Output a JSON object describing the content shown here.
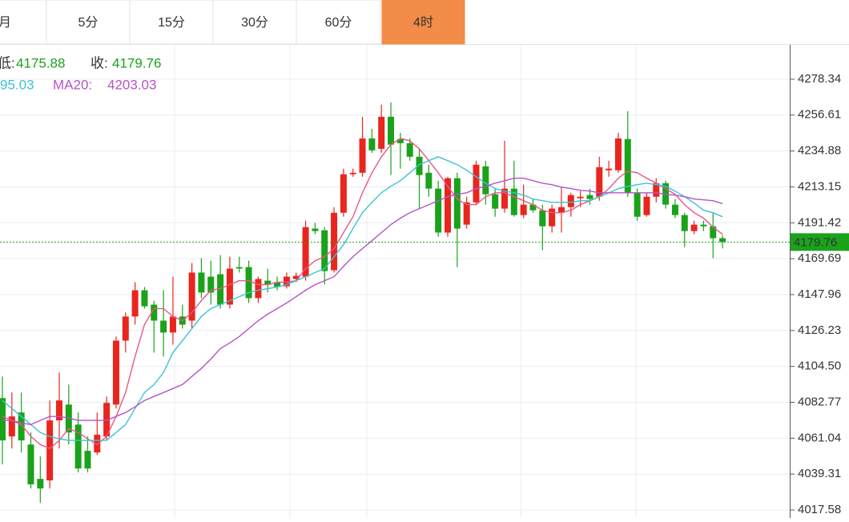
{
  "tabs": [
    "月",
    "5分",
    "15分",
    "30分",
    "60分",
    "4时"
  ],
  "active_tab": 5,
  "info": {
    "low_label": "低:",
    "low": 4175.88,
    "close_label": "收:",
    "close": 4179.76,
    "ma10_tail": 95.03,
    "ma20_label": "MA20:",
    "ma20": 4203.03
  },
  "chart_data": {
    "type": "candlestick",
    "up_color": "#e8261e",
    "down_color": "#1ba21b",
    "ylim": [
      4012.74,
      4299.14
    ],
    "yticks": [
      4278.34,
      4256.61,
      4234.88,
      4213.15,
      4191.42,
      4169.69,
      4147.96,
      4126.23,
      {
        "value": 4104.5,
        "label": "4104.50"
      },
      4082.77,
      4061.04,
      4039.31,
      4017.58
    ],
    "grid": true,
    "last_price": 4179.76,
    "open": [
      4085.3,
      4062.1,
      4076.6,
      4057.2,
      4036.4,
      4035.5,
      4071.8,
      4081.4,
      4069.3,
      4053.4,
      4052.4,
      4062.1,
      4081.4,
      4120.1,
      4134.7,
      4150.6,
      4141.9,
      4132.2,
      4125.0,
      4134.7,
      4132.2,
      4161.3,
      4158.8,
      4160.3,
      4141.9,
      4164.6,
      4164.6,
      4145.8,
      4156.4,
      4155.5,
      4153.0,
      4157.4,
      4158.8,
      4187.9,
      4186.9,
      4162.7,
      4197.5,
      4220.8,
      4221.7,
      4242.5,
      4236.2,
      4255.6,
      4242.1,
      4239.6,
      4231.4,
      4221.7,
      4212.1,
      4185.5,
      4218.4,
      4190.3,
      4203.8,
      4225.6,
      4208.7,
      4200.0,
      4212.1,
      4196.1,
      4202.4,
      4199.0,
      4189.3,
      4197.5,
      4200.9,
      4206.3,
      4208.2,
      4207.2,
      4223.2,
      4223.2,
      4242.1,
      4209.6,
      4196.1,
      4207.2,
      4215.4,
      4202.4,
      4196.1,
      4186.4,
      4190.3,
      4189.3,
      4182.1
    ],
    "high": [
      4098.4,
      4088.7,
      4088.7,
      4064.5,
      4050.0,
      4083.9,
      4100.8,
      4093.5,
      4076.6,
      4062.1,
      4076.6,
      4086.3,
      4122.6,
      4137.1,
      4155.5,
      4152.6,
      4144.3,
      4150.6,
      4158.8,
      4141.9,
      4167.1,
      4170.0,
      4168.5,
      4171.9,
      4170.9,
      4170.9,
      4168.5,
      4158.8,
      4163.7,
      4158.8,
      4161.3,
      4161.3,
      4192.7,
      4191.3,
      4188.8,
      4200.9,
      4224.2,
      4224.2,
      4255.6,
      4248.3,
      4262.9,
      4264.3,
      4245.9,
      4242.5,
      4236.2,
      4226.6,
      4216.9,
      4219.3,
      4221.7,
      4207.2,
      4229.0,
      4229.0,
      4212.1,
      4241.1,
      4229.0,
      4214.5,
      4205.8,
      4202.4,
      4202.4,
      4213.5,
      4209.6,
      4210.6,
      4212.1,
      4231.4,
      4229.0,
      4245.9,
      4259.0,
      4212.1,
      4209.6,
      4218.4,
      4216.9,
      4205.8,
      4197.5,
      4192.7,
      4192.7,
      4197.5,
      4184.0
    ],
    "low": [
      4045.2,
      4054.8,
      4052.4,
      4030.6,
      4021.9,
      4030.6,
      4054.8,
      4057.2,
      4040.3,
      4040.3,
      4050.9,
      4059.7,
      4079.0,
      4112.9,
      4129.8,
      4139.5,
      4112.9,
      4110.5,
      4117.7,
      4127.4,
      4127.4,
      4145.8,
      4141.9,
      4139.5,
      4139.5,
      4161.3,
      4142.9,
      4142.9,
      4149.2,
      4150.6,
      4151.6,
      4155.5,
      4156.4,
      4184.5,
      4154.0,
      4161.3,
      4195.1,
      4219.3,
      4219.3,
      4233.8,
      4233.8,
      4220.3,
      4224.2,
      4229.0,
      4200.0,
      4207.2,
      4183.0,
      4183.0,
      4164.6,
      4187.9,
      4202.4,
      4202.4,
      4195.1,
      4197.5,
      4195.1,
      4194.2,
      4197.5,
      4174.8,
      4185.5,
      4185.5,
      4195.1,
      4200.9,
      4202.4,
      4204.8,
      4219.3,
      4221.7,
      4207.2,
      4192.7,
      4195.1,
      4203.8,
      4200.0,
      4194.2,
      4176.7,
      4184.5,
      4186.4,
      4170.0,
      4175.88
    ],
    "close": [
      4059.7,
      4074.2,
      4059.7,
      4033.1,
      4030.6,
      4071.8,
      4083.9,
      4064.5,
      4042.7,
      4042.7,
      4063.1,
      4082.4,
      4120.1,
      4134.7,
      4150.6,
      4140.9,
      4132.2,
      4125.0,
      4134.7,
      4129.8,
      4161.3,
      4149.2,
      4149.2,
      4141.9,
      4163.7,
      4163.7,
      4145.8,
      4157.4,
      4154.0,
      4152.6,
      4158.8,
      4159.3,
      4188.8,
      4186.4,
      4162.2,
      4197.5,
      4220.8,
      4221.7,
      4242.5,
      4235.3,
      4255.6,
      4238.7,
      4239.6,
      4231.4,
      4220.3,
      4212.1,
      4185.5,
      4218.4,
      4187.9,
      4203.8,
      4226.6,
      4208.7,
      4200.0,
      4212.1,
      4196.1,
      4202.4,
      4199.0,
      4189.3,
      4200.0,
      4200.9,
      4208.2,
      4207.2,
      4205.8,
      4225.1,
      4224.2,
      4242.5,
      4209.6,
      4195.1,
      4207.2,
      4215.4,
      4202.4,
      4196.1,
      4186.4,
      4190.3,
      4189.3,
      4182.1,
      4179.76
    ],
    "ma_lines": [
      {
        "color": "#e8578a",
        "values": [
          4074.2,
          4071.8,
          4069.3,
          4062.1,
          4057.2,
          4054.8,
          4059.7,
          4066.9,
          4064.5,
          4060.6,
          4057.2,
          4062.1,
          4074.2,
          4088.7,
          4110.5,
          4129.8,
          4139.5,
          4139.5,
          4134.7,
          4132.2,
          4137.1,
          4144.3,
          4150.6,
          4151.6,
          4154.0,
          4156.4,
          4156.4,
          4154.0,
          4154.0,
          4155.5,
          4155.5,
          4156.4,
          4163.7,
          4168.5,
          4170.9,
          4175.8,
          4185.5,
          4195.1,
          4209.6,
          4221.7,
          4231.4,
          4238.7,
          4242.5,
          4241.1,
          4236.2,
          4229.0,
          4221.7,
          4213.5,
          4205.8,
          4202.4,
          4202.4,
          4207.2,
          4209.6,
          4209.6,
          4207.2,
          4204.8,
          4202.4,
          4199.0,
          4197.5,
          4197.5,
          4199.0,
          4202.4,
          4204.8,
          4207.2,
          4212.1,
          4218.4,
          4222.7,
          4221.7,
          4218.4,
          4215.4,
          4212.1,
          4208.7,
          4202.4,
          4197.5,
          4194.2,
          4188.8,
          4184.5
        ]
      },
      {
        "color": "#3cc3d6",
        "values": [
          4083.9,
          4079.0,
          4074.2,
          4069.3,
          4064.5,
          4062.1,
          4060.6,
          4059.7,
          4059.7,
          4059.7,
          4059.7,
          4059.7,
          4064.5,
          4069.3,
          4079.0,
          4088.7,
          4093.5,
          4100.8,
          4112.9,
          4120.1,
          4127.4,
          4134.7,
          4139.5,
          4141.9,
          4144.3,
          4146.7,
          4149.2,
          4150.6,
          4151.6,
          4152.6,
          4154.0,
          4156.4,
          4158.8,
          4161.3,
          4163.7,
          4170.9,
          4178.2,
          4187.9,
          4197.5,
          4203.8,
          4209.6,
          4213.5,
          4216.9,
          4221.7,
          4226.6,
          4229.0,
          4231.4,
          4229.0,
          4226.6,
          4223.2,
          4219.3,
          4215.4,
          4212.1,
          4210.6,
          4209.6,
          4208.2,
          4205.8,
          4204.8,
          4203.8,
          4203.8,
          4203.8,
          4204.8,
          4204.8,
          4207.2,
          4209.6,
          4212.1,
          4213.5,
          4214.5,
          4215.4,
          4214.5,
          4213.5,
          4210.6,
          4207.2,
          4203.4,
          4199.0,
          4197.5,
          4195.03
        ]
      },
      {
        "name": "MA20",
        "color": "#b752c8",
        "values": [
          4071.8,
          4071.8,
          4070.3,
          4069.3,
          4071.8,
          4074.2,
          4074.2,
          4073.2,
          4071.8,
          4071.8,
          4071.8,
          4071.8,
          4074.2,
          4076.6,
          4080.0,
          4083.9,
          4086.3,
          4088.7,
          4091.1,
          4093.5,
          4098.4,
          4103.2,
          4109.0,
          4115.3,
          4118.7,
          4122.6,
          4127.4,
          4132.2,
          4136.1,
          4139.5,
          4142.9,
          4146.7,
          4150.6,
          4154.0,
          4156.4,
          4158.8,
          4165.1,
          4170.9,
          4175.8,
          4180.6,
          4185.5,
          4190.3,
          4194.2,
          4197.5,
          4200.0,
          4202.4,
          4204.8,
          4207.2,
          4208.7,
          4209.6,
          4212.1,
          4213.5,
          4215.4,
          4216.9,
          4218.4,
          4218.4,
          4216.9,
          4215.4,
          4214.5,
          4213.0,
          4212.1,
          4211.1,
          4210.6,
          4209.6,
          4209.6,
          4209.6,
          4209.6,
          4209.6,
          4209.6,
          4209.6,
          4208.7,
          4208.2,
          4207.2,
          4205.8,
          4205.3,
          4204.8,
          4203.03
        ]
      }
    ]
  }
}
